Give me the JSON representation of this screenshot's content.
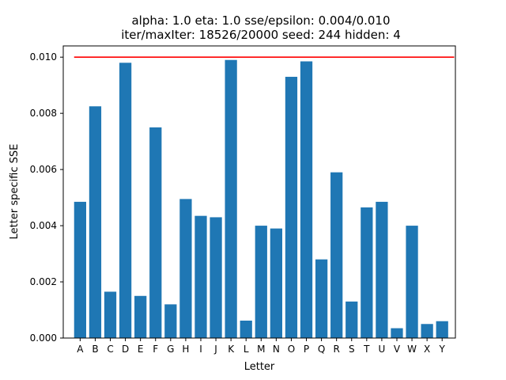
{
  "chart_data": {
    "type": "bar",
    "title_line1": "alpha: 1.0  eta: 1.0  sse/epsilon: 0.004/0.010",
    "title_line2": "iter/maxIter: 18526/20000  seed: 244  hidden: 4",
    "xlabel": "Letter",
    "ylabel": "Letter specific SSE",
    "categories": [
      "A",
      "B",
      "C",
      "D",
      "E",
      "F",
      "G",
      "H",
      "I",
      "J",
      "K",
      "L",
      "M",
      "N",
      "O",
      "P",
      "Q",
      "R",
      "S",
      "T",
      "U",
      "V",
      "W",
      "X",
      "Y"
    ],
    "values": [
      0.00485,
      0.00825,
      0.00165,
      0.0098,
      0.0015,
      0.0075,
      0.0012,
      0.00495,
      0.00435,
      0.0043,
      0.0099,
      0.00062,
      0.004,
      0.0039,
      0.0093,
      0.00985,
      0.0028,
      0.0059,
      0.0013,
      0.00465,
      0.00485,
      0.00035,
      0.004,
      0.0005,
      0.0006
    ],
    "ylim": [
      0,
      0.0104
    ],
    "yticks": [
      "0.000",
      "0.002",
      "0.004",
      "0.006",
      "0.008",
      "0.010"
    ],
    "ytick_values": [
      0,
      0.002,
      0.004,
      0.006,
      0.008,
      0.01
    ],
    "threshold": 0.01,
    "colors": {
      "bar": "#1f77b4",
      "threshold": "#ff0000",
      "axis": "#000000"
    }
  }
}
